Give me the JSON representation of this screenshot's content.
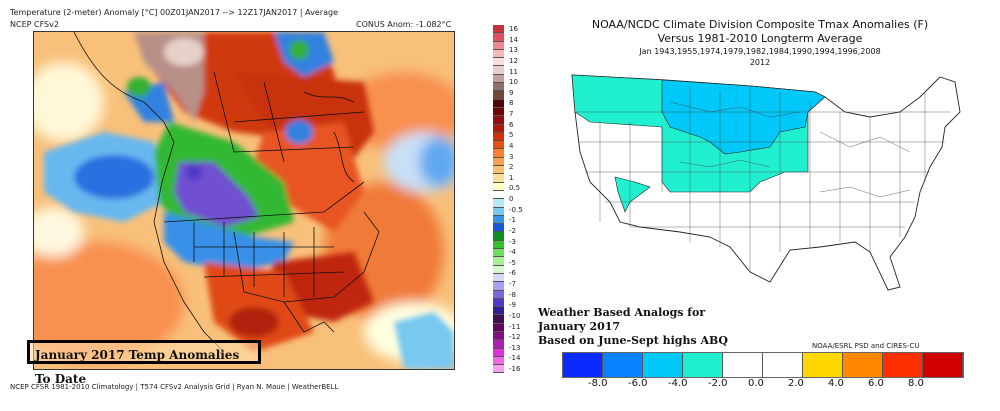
{
  "left_panel": {
    "title_line1": "Temperature (2-meter) Anomaly   [°C] 00Z01JAN2017 --> 12Z17JAN2017 | Average",
    "title_line2_left": "NCEP CFSv2",
    "title_line2_right": "CONUS Anom: -1.082°C",
    "overlay_label": "January 2017 Temp Anomalies To Date",
    "footer": "NCEP CFSR 1981-2010 Climatology | T574 CFSv2 Analysis Grid | Ryan N. Maue | WeatherBELL",
    "colorbar": {
      "labels": [
        "16",
        "14",
        "13",
        "12",
        "11",
        "10",
        "9",
        "8",
        "7",
        "6",
        "5",
        "4",
        "3",
        "2",
        "1",
        "0.5",
        "0",
        "-0.5",
        "-1",
        "-2",
        "-3",
        "-4",
        "-5",
        "-6",
        "-7",
        "-8",
        "-9",
        "-10",
        "-11",
        "-12",
        "-13",
        "-14",
        "-16"
      ],
      "colors": [
        "#c8303a",
        "#e05060",
        "#f08890",
        "#f8b8b8",
        "#f8e0e0",
        "#e8d0c8",
        "#c0a098",
        "#907068",
        "#704838",
        "#500808",
        "#700808",
        "#901010",
        "#b01808",
        "#d03008",
        "#e85010",
        "#f88030",
        "#f8a050",
        "#f8c070",
        "#f8e098",
        "#ffffc0",
        "#ffffff",
        "#b8e8f8",
        "#78c8f0",
        "#3890e8",
        "#1858d8",
        "#109020",
        "#30c030",
        "#70e060",
        "#a8f098",
        "#d8f8d0",
        "#d8d8f8",
        "#a8a0f0",
        "#7868e0",
        "#5038c8",
        "#302098",
        "#401050",
        "#600860",
        "#801080",
        "#b020b0",
        "#e030e0",
        "#f068e8",
        "#f8a0f0"
      ]
    },
    "map_regions": [
      {
        "name": "alaska-warm",
        "color": "#c83010"
      },
      {
        "name": "yukon-very-warm",
        "color": "#b89088"
      },
      {
        "name": "pacific-cold",
        "color": "#3080e0"
      },
      {
        "name": "west-canada-cold",
        "color": "#30b030"
      },
      {
        "name": "northwest-very-cold",
        "color": "#7050d0"
      },
      {
        "name": "southeast-us-warm",
        "color": "#b02008"
      }
    ]
  },
  "right_panel": {
    "title_line1": "NOAA/NCDC Climate Division Composite Tmax Anomalies (F)",
    "title_line2": "Versus 1981-2010 Longterm Average",
    "title_line3": "Jan   1943,1955,1974,1979,1982,1984,1990,1994,1996,2008",
    "title_line4": "2012",
    "analog_text": [
      "Weather Based Analogs for",
      "January 2017",
      "Based on June-Sept highs ABQ"
    ],
    "credit": "NOAA/ESRL PSD and CIRES-CU",
    "legend": {
      "colors": [
        "#0a2aff",
        "#0a82ff",
        "#00c8f8",
        "#20f0d0",
        "#ffffff",
        "#ffffff",
        "#ffd800",
        "#ff8800",
        "#ff3000",
        "#d00000"
      ],
      "ticks": [
        "-8.0",
        "-6.0",
        "-4.0",
        "-2.0",
        "0.0",
        "2.0",
        "4.0",
        "6.0",
        "8.0"
      ]
    },
    "map_regions": [
      {
        "name": "northern-plains-cold",
        "color": "#00c8f8",
        "anomaly_range": "-6.0 to -4.0"
      },
      {
        "name": "northwest-and-central-cool",
        "color": "#20f0d0",
        "anomaly_range": "-4.0 to -2.0"
      },
      {
        "name": "rest-neutral",
        "color": "#ffffff",
        "anomaly_range": "-2.0 to 2.0"
      }
    ]
  }
}
